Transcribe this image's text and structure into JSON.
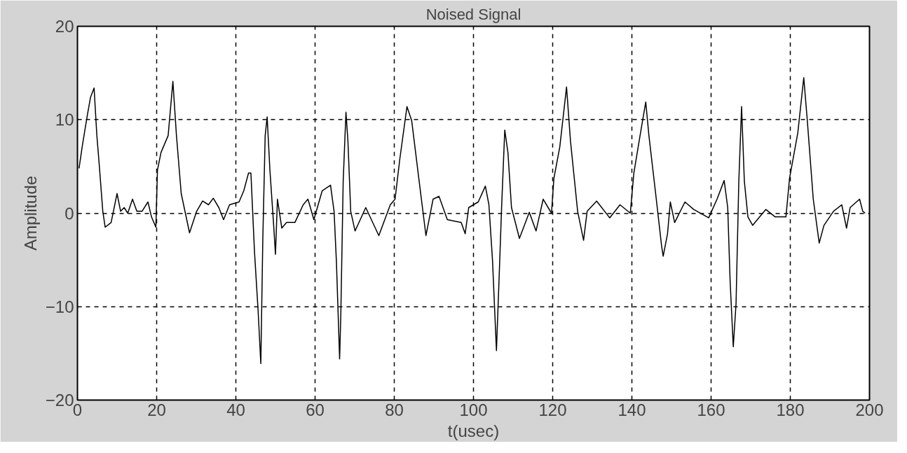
{
  "chart_data": {
    "type": "line",
    "title": "Noised Signal",
    "xlabel": "t(usec)",
    "ylabel": "Amplitude",
    "xlim": [
      0,
      200
    ],
    "ylim": [
      -20,
      20
    ],
    "xticks": [
      0,
      20,
      40,
      60,
      80,
      100,
      120,
      140,
      160,
      180,
      200
    ],
    "yticks": [
      -20,
      -10,
      0,
      10,
      20
    ],
    "grid": true,
    "line_style": "solid",
    "series": [
      {
        "color": "#000000",
        "x": [
          0.4,
          1.3,
          2.5,
          3.3,
          4.2,
          4.9,
          5.5,
          6.4,
          7.0,
          8.5,
          10.0,
          10.9,
          11.8,
          12.7,
          13.9,
          15.0,
          16.3,
          17.8,
          18.7,
          19.8,
          20.2,
          21.1,
          22.9,
          24.1,
          25.0,
          26.2,
          28.3,
          30.1,
          31.6,
          33.1,
          34.3,
          35.7,
          36.9,
          38.4,
          40.8,
          42.0,
          43.2,
          43.8,
          44.7,
          45.6,
          46.3,
          46.8,
          47.4,
          47.9,
          48.6,
          49.5,
          50.0,
          50.5,
          51.6,
          52.8,
          54.9,
          57.0,
          58.2,
          59.7,
          61.8,
          63.9,
          64.8,
          65.4,
          66.2,
          66.5,
          67.1,
          67.8,
          68.3,
          69.0,
          70.1,
          72.8,
          76.1,
          79.0,
          80.2,
          81.4,
          83.2,
          84.4,
          86.2,
          88.0,
          89.8,
          91.3,
          93.4,
          96.9,
          97.9,
          98.8,
          101.2,
          103.0,
          103.9,
          104.8,
          105.8,
          106.5,
          107.1,
          107.9,
          108.7,
          109.6,
          111.6,
          114.1,
          115.8,
          117.6,
          119.7,
          120.3,
          121.8,
          123.5,
          124.5,
          126.3,
          127.8,
          128.7,
          131.1,
          134.4,
          137.0,
          139.6,
          140.5,
          142.3,
          143.5,
          144.3,
          146.0,
          147.5,
          147.9,
          149.0,
          149.7,
          150.8,
          153.4,
          155.6,
          159.4,
          161.5,
          163.3,
          164.2,
          164.8,
          165.6,
          166.3,
          167.0,
          167.7,
          168.4,
          169.3,
          170.5,
          173.8,
          176.2,
          178.9,
          179.8,
          181.9,
          183.4,
          184.3,
          185.8,
          187.3,
          188.5,
          190.9,
          193.0,
          194.2,
          195.1,
          197.5,
          198.3,
          198.9
        ],
        "values": [
          4.8,
          7.4,
          10.5,
          12.4,
          13.4,
          8.3,
          5.2,
          0.2,
          -1.5,
          -1.0,
          2.1,
          0.2,
          0.6,
          0,
          1.5,
          0.2,
          0.2,
          1.2,
          -0.4,
          -1.5,
          4.6,
          6.5,
          8.3,
          14.1,
          8.3,
          2.1,
          -2.1,
          0.2,
          1.3,
          0.9,
          1.6,
          0.6,
          -0.7,
          0.9,
          1.2,
          2.4,
          4.3,
          4.3,
          -4.1,
          -10.3,
          -16.1,
          -2.9,
          8.3,
          10.3,
          4.6,
          -1.0,
          -4.4,
          1.5,
          -1.6,
          -1.0,
          -1.0,
          0.9,
          1.5,
          -0.7,
          2.4,
          3.0,
          0.2,
          -5.3,
          -15.6,
          -10.9,
          3.4,
          10.8,
          7.7,
          0.2,
          -1.9,
          0.6,
          -2.4,
          0.9,
          1.5,
          5.8,
          11.4,
          9.9,
          3.7,
          -2.4,
          1.5,
          1.8,
          -0.7,
          -1.0,
          -2.2,
          0.6,
          1.2,
          2.9,
          0.9,
          -5.0,
          -14.7,
          -6.6,
          0.6,
          8.9,
          6.5,
          0.6,
          -2.7,
          0.1,
          -1.9,
          1.5,
          0,
          3.7,
          7.1,
          13.5,
          7.7,
          0.2,
          -2.9,
          0.2,
          1.3,
          -0.5,
          0.9,
          0,
          4.3,
          8.9,
          11.9,
          8.3,
          2.1,
          -3.5,
          -4.6,
          -2.2,
          1.2,
          -1.0,
          1.2,
          0.4,
          -0.5,
          1.5,
          3.5,
          0.6,
          -7.2,
          -14.3,
          -9.7,
          3.4,
          11.4,
          3.4,
          -0.4,
          -1.3,
          0.4,
          -0.4,
          -0.4,
          3.7,
          8.6,
          14.5,
          9.9,
          1.5,
          -3.2,
          -1.3,
          0.2,
          0.9,
          -1.6,
          0.6,
          1.5,
          0.2,
          0
        ]
      }
    ]
  }
}
